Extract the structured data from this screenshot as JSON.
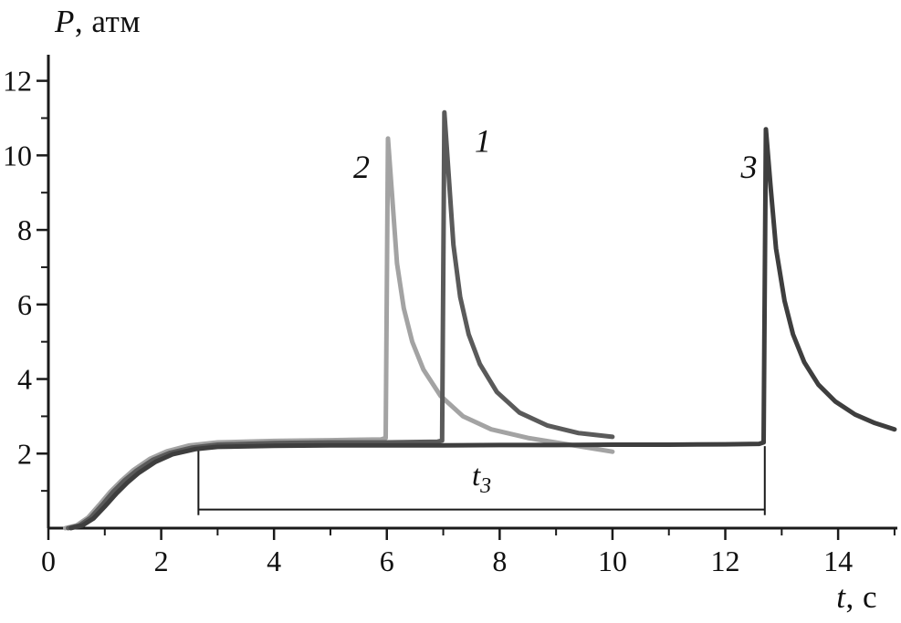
{
  "figure": {
    "background": "#ffffff",
    "axis_color": "#1a1a1a",
    "text_color": "#101010"
  },
  "chart_data": {
    "type": "line",
    "title": "",
    "xlabel": "t, с",
    "xlabel_italic": "t",
    "xlabel_rest": ", с",
    "ylabel": "P, атм",
    "ylabel_italic": "P",
    "ylabel_rest": ", атм",
    "xlim": [
      0,
      15.05
    ],
    "ylim": [
      0,
      12.7
    ],
    "x_major_ticks": [
      0,
      2,
      4,
      6,
      8,
      10,
      12,
      14
    ],
    "x_minor_ticks": [
      1,
      3,
      5,
      7,
      9,
      11,
      13,
      15
    ],
    "y_major_ticks": [
      2,
      4,
      6,
      8,
      10,
      12
    ],
    "y_minor_ticks": [
      1,
      3,
      5,
      7,
      9,
      11
    ],
    "grid": false,
    "legend": "none",
    "annotation": {
      "text": "t",
      "subscript": "3",
      "x_start": 2.66,
      "x_end": 12.7,
      "bracket_y": 0.5,
      "tick_top": 2.2,
      "tick_bottom": 0.35,
      "label_x": 7.68,
      "label_y": 1.15
    },
    "series": [
      {
        "name": "2",
        "color": "#a3a3a3",
        "label_color": "#2a2a2a",
        "width": 5,
        "label_pos": [
          5.55,
          9.4
        ],
        "peak": {
          "t": 6.0,
          "p": 10.45
        },
        "points": [
          [
            0.3,
            0.0
          ],
          [
            0.5,
            0.07
          ],
          [
            0.7,
            0.28
          ],
          [
            0.9,
            0.62
          ],
          [
            1.1,
            0.98
          ],
          [
            1.3,
            1.28
          ],
          [
            1.5,
            1.55
          ],
          [
            1.8,
            1.86
          ],
          [
            2.1,
            2.06
          ],
          [
            2.5,
            2.22
          ],
          [
            3.0,
            2.3
          ],
          [
            4.0,
            2.34
          ],
          [
            5.0,
            2.36
          ],
          [
            5.9,
            2.38
          ],
          [
            5.98,
            2.42
          ],
          [
            6.02,
            10.45
          ],
          [
            6.1,
            8.8
          ],
          [
            6.18,
            7.1
          ],
          [
            6.3,
            5.9
          ],
          [
            6.45,
            5.0
          ],
          [
            6.65,
            4.25
          ],
          [
            6.95,
            3.55
          ],
          [
            7.35,
            3.0
          ],
          [
            7.85,
            2.65
          ],
          [
            8.5,
            2.42
          ],
          [
            9.2,
            2.25
          ],
          [
            10.0,
            2.05
          ]
        ]
      },
      {
        "name": "1",
        "color": "#5a5a5a",
        "label_color": "#262626",
        "width": 5,
        "label_pos": [
          7.7,
          10.1
        ],
        "peak": {
          "t": 7.0,
          "p": 11.15
        },
        "points": [
          [
            0.35,
            0.0
          ],
          [
            0.55,
            0.07
          ],
          [
            0.75,
            0.28
          ],
          [
            0.95,
            0.62
          ],
          [
            1.15,
            0.98
          ],
          [
            1.35,
            1.28
          ],
          [
            1.55,
            1.53
          ],
          [
            1.85,
            1.83
          ],
          [
            2.15,
            2.02
          ],
          [
            2.55,
            2.16
          ],
          [
            3.0,
            2.24
          ],
          [
            4.0,
            2.28
          ],
          [
            5.0,
            2.3
          ],
          [
            6.0,
            2.3
          ],
          [
            6.9,
            2.32
          ],
          [
            6.98,
            2.35
          ],
          [
            7.02,
            11.15
          ],
          [
            7.1,
            9.4
          ],
          [
            7.18,
            7.6
          ],
          [
            7.3,
            6.2
          ],
          [
            7.45,
            5.2
          ],
          [
            7.65,
            4.4
          ],
          [
            7.95,
            3.65
          ],
          [
            8.35,
            3.1
          ],
          [
            8.85,
            2.75
          ],
          [
            9.4,
            2.55
          ],
          [
            10.0,
            2.45
          ]
        ]
      },
      {
        "name": "3",
        "color": "#3e3e3e",
        "label_color": "#262626",
        "width": 5,
        "label_pos": [
          12.42,
          9.4
        ],
        "peak": {
          "t": 12.7,
          "p": 10.7
        },
        "points": [
          [
            0.4,
            0.0
          ],
          [
            0.6,
            0.07
          ],
          [
            0.8,
            0.26
          ],
          [
            1.0,
            0.58
          ],
          [
            1.2,
            0.92
          ],
          [
            1.4,
            1.22
          ],
          [
            1.6,
            1.48
          ],
          [
            1.9,
            1.78
          ],
          [
            2.2,
            1.98
          ],
          [
            2.6,
            2.12
          ],
          [
            3.0,
            2.18
          ],
          [
            4.0,
            2.21
          ],
          [
            5.0,
            2.22
          ],
          [
            6.0,
            2.22
          ],
          [
            7.0,
            2.22
          ],
          [
            8.0,
            2.23
          ],
          [
            9.0,
            2.23
          ],
          [
            10.0,
            2.24
          ],
          [
            11.0,
            2.24
          ],
          [
            12.0,
            2.25
          ],
          [
            12.6,
            2.26
          ],
          [
            12.68,
            2.3
          ],
          [
            12.72,
            10.7
          ],
          [
            12.8,
            9.2
          ],
          [
            12.9,
            7.5
          ],
          [
            13.05,
            6.1
          ],
          [
            13.2,
            5.2
          ],
          [
            13.4,
            4.45
          ],
          [
            13.65,
            3.85
          ],
          [
            13.95,
            3.4
          ],
          [
            14.3,
            3.05
          ],
          [
            14.65,
            2.82
          ],
          [
            15.0,
            2.65
          ]
        ]
      }
    ]
  }
}
